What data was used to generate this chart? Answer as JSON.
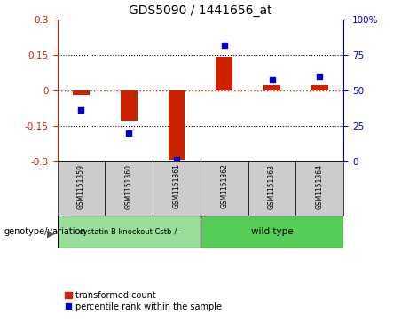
{
  "title": "GDS5090 / 1441656_at",
  "samples": [
    "GSM1151359",
    "GSM1151360",
    "GSM1151361",
    "GSM1151362",
    "GSM1151363",
    "GSM1151364"
  ],
  "transformed_count": [
    -0.02,
    -0.13,
    -0.295,
    0.143,
    0.02,
    0.02
  ],
  "percentile_rank": [
    36,
    20,
    1,
    82,
    57,
    60
  ],
  "ylim_left": [
    -0.3,
    0.3
  ],
  "ylim_right": [
    0,
    100
  ],
  "yticks_left": [
    -0.3,
    -0.15,
    0,
    0.15,
    0.3
  ],
  "yticks_right": [
    0,
    25,
    50,
    75,
    100
  ],
  "bar_color": "#cc2200",
  "dot_color": "#0000cc",
  "hline_color": "#cc2200",
  "group1_label": "cystatin B knockout Cstb-/-",
  "group2_label": "wild type",
  "group1_indices": [
    0,
    1,
    2
  ],
  "group2_indices": [
    3,
    4,
    5
  ],
  "group1_color": "#99dd99",
  "group2_color": "#55cc55",
  "sample_box_color": "#cccccc",
  "genotype_label": "genotype/variation",
  "legend_bar_label": "transformed count",
  "legend_dot_label": "percentile rank within the sample",
  "bar_width": 0.35
}
